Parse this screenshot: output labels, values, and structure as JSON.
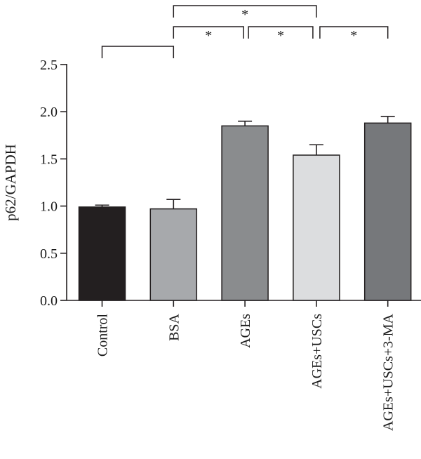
{
  "chart_data": {
    "type": "bar",
    "categories": [
      "Control",
      "BSA",
      "AGEs",
      "AGEs+USCs",
      "AGEs+USCs+3-MA"
    ],
    "values": [
      0.99,
      0.97,
      1.85,
      1.54,
      1.88
    ],
    "errors": [
      0.02,
      0.1,
      0.05,
      0.11,
      0.07
    ],
    "colors": [
      "#231f20",
      "#a7a9ac",
      "#8a8c8e",
      "#dcdddf",
      "#76787b"
    ],
    "title": "",
    "xlabel": "",
    "ylabel": "p62/GAPDH",
    "ylim": [
      0,
      2.5
    ],
    "yticks": [
      "0.0",
      "0.5",
      "1.0",
      "1.5",
      "2.0",
      "2.5"
    ],
    "grid": false,
    "significance": [
      {
        "from": 0,
        "to": 1,
        "label": ""
      },
      {
        "from": 1,
        "to": 2,
        "label": "*"
      },
      {
        "from": 2,
        "to": 3,
        "label": "*"
      },
      {
        "from": 3,
        "to": 4,
        "label": "*"
      },
      {
        "from": 1,
        "to": 3,
        "label": "*"
      }
    ]
  }
}
